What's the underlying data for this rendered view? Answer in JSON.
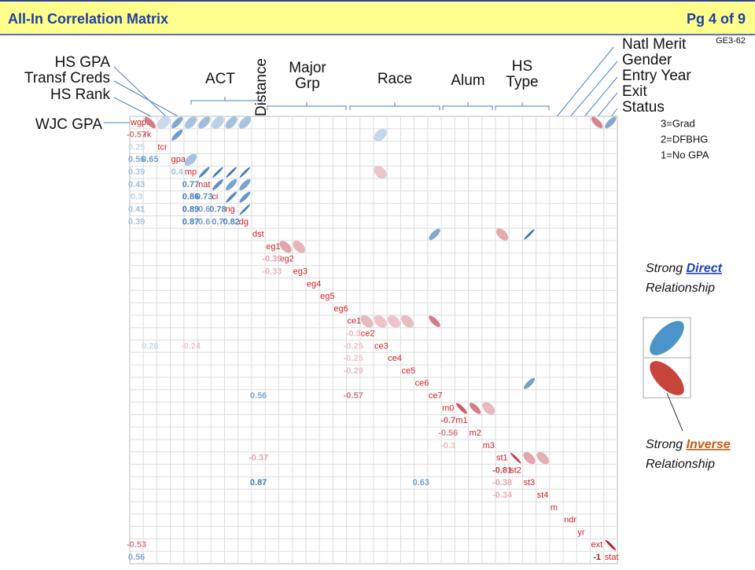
{
  "header": {
    "title": "All-In Correlation Matrix",
    "page": "Pg 4 of 9",
    "code": "GE3-62"
  },
  "labels": {
    "hs_gpa": "HS GPA",
    "transf_creds": "Transf Creds",
    "hs_rank": "HS Rank",
    "wjc_gpa": "WJC GPA",
    "act": "ACT",
    "distance": "Distance",
    "major": "Major",
    "grp": "Grp",
    "race": "Race",
    "alum": "Alum",
    "hs": "HS",
    "type": "Type",
    "natl_merit": "Natl Merit",
    "gender": "Gender",
    "entry_year": "Entry Year",
    "exit": "Exit",
    "status": "Status"
  },
  "status_key": [
    "3=Grad",
    "2=DFBHG",
    "1=No GPA"
  ],
  "legend": {
    "strong": "Strong",
    "direct": "Direct",
    "inverse": "Inverse",
    "relationship": "Relationship"
  },
  "chart_data": {
    "type": "correlation",
    "variables": [
      "wgpa",
      "rk",
      "tcr",
      "gpa",
      "mp",
      "nat",
      "ci",
      "ng",
      "dg",
      "dst",
      "eg1",
      "eg2",
      "eg3",
      "eg4",
      "eg5",
      "eg6",
      "ce1",
      "ce2",
      "ce3",
      "ce4",
      "ce5",
      "ce6",
      "ce7",
      "m0",
      "m1",
      "m2",
      "m3",
      "st1",
      "st2",
      "st3",
      "st4",
      "m",
      "ndr",
      "yr",
      "ext",
      "stat"
    ],
    "cells": [
      {
        "row": 1,
        "col": 0,
        "value": -0.57
      },
      {
        "row": 2,
        "col": 0,
        "value": 0.25
      },
      {
        "row": 3,
        "col": 0,
        "value": 0.56
      },
      {
        "row": 3,
        "col": 1,
        "value": 0.65
      },
      {
        "row": 4,
        "col": 0,
        "value": 0.39
      },
      {
        "row": 4,
        "col": 3,
        "value": 0.4
      },
      {
        "row": 5,
        "col": 0,
        "value": 0.43
      },
      {
        "row": 5,
        "col": 4,
        "value": 0.77
      },
      {
        "row": 6,
        "col": 0,
        "value": 0.3
      },
      {
        "row": 6,
        "col": 4,
        "value": 0.86
      },
      {
        "row": 6,
        "col": 5,
        "value": 0.73
      },
      {
        "row": 7,
        "col": 0,
        "value": 0.41
      },
      {
        "row": 7,
        "col": 4,
        "value": 0.89
      },
      {
        "row": 7,
        "col": 5,
        "value": 0.6
      },
      {
        "row": 7,
        "col": 6,
        "value": 0.78
      },
      {
        "row": 8,
        "col": 0,
        "value": 0.39
      },
      {
        "row": 8,
        "col": 4,
        "value": 0.87
      },
      {
        "row": 8,
        "col": 5,
        "value": 0.6
      },
      {
        "row": 8,
        "col": 6,
        "value": 0.7
      },
      {
        "row": 8,
        "col": 7,
        "value": 0.82
      },
      {
        "row": 11,
        "col": 10,
        "value": -0.39
      },
      {
        "row": 12,
        "col": 10,
        "value": -0.33
      },
      {
        "row": 17,
        "col": 16,
        "value": -0.3
      },
      {
        "row": 18,
        "col": 1,
        "value": 0.26
      },
      {
        "row": 18,
        "col": 4,
        "value": -0.24
      },
      {
        "row": 18,
        "col": 16,
        "value": -0.25
      },
      {
        "row": 19,
        "col": 16,
        "value": -0.25
      },
      {
        "row": 20,
        "col": 16,
        "value": -0.29
      },
      {
        "row": 22,
        "col": 9,
        "value": 0.56
      },
      {
        "row": 22,
        "col": 16,
        "value": -0.57
      },
      {
        "row": 24,
        "col": 23,
        "value": -0.7
      },
      {
        "row": 25,
        "col": 23,
        "value": -0.56
      },
      {
        "row": 26,
        "col": 23,
        "value": -0.3
      },
      {
        "row": 27,
        "col": 9,
        "value": -0.37
      },
      {
        "row": 28,
        "col": 27,
        "value": -0.81
      },
      {
        "row": 29,
        "col": 9,
        "value": 0.87
      },
      {
        "row": 29,
        "col": 21,
        "value": 0.63
      },
      {
        "row": 29,
        "col": 27,
        "value": -0.38
      },
      {
        "row": 30,
        "col": 27,
        "value": -0.34
      },
      {
        "row": 34,
        "col": 0,
        "value": -0.53
      },
      {
        "row": 35,
        "col": 0,
        "value": 0.56
      },
      {
        "row": 35,
        "col": 34,
        "value": -1
      }
    ]
  }
}
